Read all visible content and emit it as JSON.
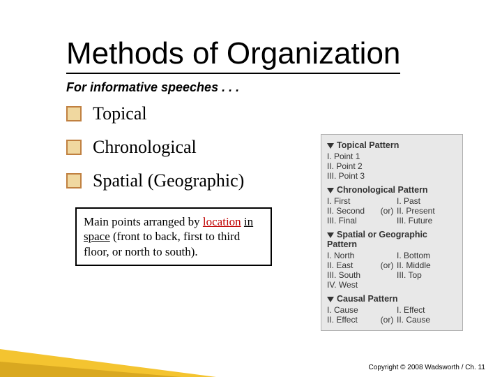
{
  "title": "Methods of Organization",
  "subtitle": "For informative speeches . . .",
  "bullets": [
    "Topical",
    "Chronological",
    "Spatial (Geographic)"
  ],
  "description": {
    "pre": "Main points arranged by ",
    "location_word": "location",
    "mid1": " ",
    "spatial_phrase": "in space",
    "post": " (front to back, first to third floor, or north to south)."
  },
  "sidebar": {
    "panels": [
      {
        "title": "Topical Pattern",
        "rows": [
          {
            "l": "  I. Point 1",
            "m": "",
            "r": ""
          },
          {
            "l": " II. Point 2",
            "m": "",
            "r": ""
          },
          {
            "l": "III. Point 3",
            "m": "",
            "r": ""
          }
        ]
      },
      {
        "title": "Chronological Pattern",
        "rows": [
          {
            "l": "  I. First",
            "m": "",
            "r": "  I. Past"
          },
          {
            "l": " II. Second",
            "m": "(or)",
            "r": " II. Present"
          },
          {
            "l": "III. Final",
            "m": "",
            "r": "III. Future"
          }
        ]
      },
      {
        "title": "Spatial or Geographic Pattern",
        "rows": [
          {
            "l": "  I. North",
            "m": "",
            "r": "  I. Bottom"
          },
          {
            "l": " II. East",
            "m": "(or)",
            "r": " II. Middle"
          },
          {
            "l": "III. South",
            "m": "",
            "r": "III. Top"
          },
          {
            "l": " IV. West",
            "m": "",
            "r": ""
          }
        ]
      },
      {
        "title": "Causal Pattern",
        "rows": [
          {
            "l": "  I. Cause",
            "m": "",
            "r": "  I. Effect"
          },
          {
            "l": " II. Effect",
            "m": "(or)",
            "r": " II. Cause"
          }
        ]
      }
    ]
  },
  "copyright": "Copyright © 2008 Wadsworth  / Ch. 11",
  "colors": {
    "bullet_border": "#c08040",
    "bullet_fill": "#f0d8a0",
    "accent1": "#f4c430",
    "accent2": "#d9a820",
    "sidebar_bg": "#e8e8e8",
    "sidebar_border": "#b0b0b0",
    "loc_color": "#c00000"
  }
}
